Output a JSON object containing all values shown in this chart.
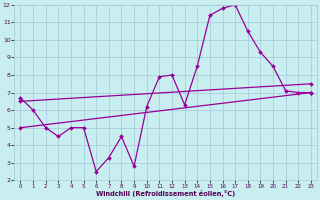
{
  "xlabel": "Windchill (Refroidissement éolien,°C)",
  "ylabel": "",
  "xlim": [
    -0.5,
    23.5
  ],
  "ylim": [
    2,
    12
  ],
  "xticks": [
    0,
    1,
    2,
    3,
    4,
    5,
    6,
    7,
    8,
    9,
    10,
    11,
    12,
    13,
    14,
    15,
    16,
    17,
    18,
    19,
    20,
    21,
    22,
    23
  ],
  "yticks": [
    2,
    3,
    4,
    5,
    6,
    7,
    8,
    9,
    10,
    11,
    12
  ],
  "background_color": "#c9eef0",
  "grid_color": "#a0c8d8",
  "line_color": "#990099",
  "line1_x": [
    0,
    1,
    2,
    3,
    4,
    5,
    6,
    7,
    8,
    9,
    10,
    11,
    12,
    13,
    14,
    15,
    16,
    17,
    18,
    19,
    20,
    21,
    22,
    23
  ],
  "line1_y": [
    6.7,
    6.0,
    5.0,
    4.5,
    5.0,
    5.0,
    2.5,
    3.3,
    4.5,
    2.8,
    6.2,
    7.9,
    8.0,
    6.3,
    8.5,
    11.4,
    11.8,
    12.0,
    10.5,
    9.3,
    8.5,
    7.1,
    7.0,
    7.0
  ],
  "line2_x": [
    0,
    23
  ],
  "line2_y": [
    5.0,
    7.0
  ],
  "line3_x": [
    0,
    23
  ],
  "line3_y": [
    6.5,
    7.5
  ]
}
